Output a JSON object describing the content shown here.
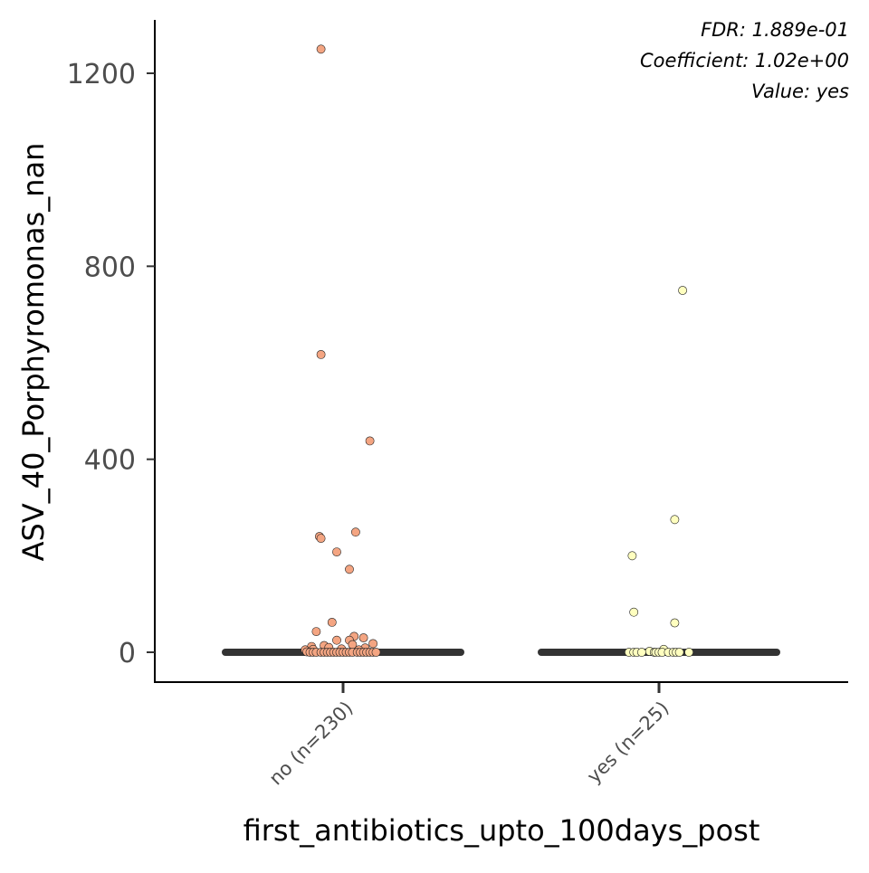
{
  "chart_data": {
    "type": "scatter",
    "title": "",
    "xlabel": "first_antibiotics_upto_100days_post",
    "ylabel": "ASV_40_Porphyromonas_nan",
    "categories": [
      "no (n=230)",
      "yes (n=25)"
    ],
    "yticks": [
      0,
      400,
      800,
      1200
    ],
    "ylim": [
      -60,
      1310
    ],
    "grid": false,
    "legend": "none",
    "annotations": [
      "FDR: 1.889e-01",
      "Coefficient: 1.02e+00",
      "Value: yes"
    ],
    "median_lines": [
      {
        "category": "no (n=230)",
        "value": 0
      },
      {
        "category": "yes (n=25)",
        "value": 0
      }
    ],
    "series": [
      {
        "category": "no (n=230)",
        "color": "#f4a582",
        "points": [
          {
            "x": -0.14,
            "y": 1250
          },
          {
            "x": -0.14,
            "y": 617
          },
          {
            "x": 0.17,
            "y": 438
          },
          {
            "x": 0.08,
            "y": 249
          },
          {
            "x": -0.15,
            "y": 240
          },
          {
            "x": -0.14,
            "y": 236
          },
          {
            "x": -0.04,
            "y": 208
          },
          {
            "x": 0.04,
            "y": 172
          },
          {
            "x": -0.07,
            "y": 62
          },
          {
            "x": -0.17,
            "y": 43
          },
          {
            "x": 0.07,
            "y": 33
          },
          {
            "x": 0.13,
            "y": 30
          },
          {
            "x": -0.04,
            "y": 25
          },
          {
            "x": 0.04,
            "y": 25
          },
          {
            "x": 0.19,
            "y": 18
          },
          {
            "x": 0.06,
            "y": 16
          },
          {
            "x": -0.12,
            "y": 14
          },
          {
            "x": -0.2,
            "y": 12
          },
          {
            "x": -0.09,
            "y": 10
          },
          {
            "x": 0.14,
            "y": 9
          },
          {
            "x": -0.01,
            "y": 7
          },
          {
            "x": -0.19,
            "y": 6
          },
          {
            "x": 0.1,
            "y": 5
          },
          {
            "x": -0.24,
            "y": 5
          },
          {
            "x": -0.23,
            "y": 1
          },
          {
            "x": -0.21,
            "y": 0
          },
          {
            "x": -0.19,
            "y": 0
          },
          {
            "x": -0.17,
            "y": 0
          },
          {
            "x": -0.14,
            "y": 0
          },
          {
            "x": -0.12,
            "y": 0
          },
          {
            "x": -0.1,
            "y": 0
          },
          {
            "x": -0.08,
            "y": 0
          },
          {
            "x": -0.06,
            "y": 0
          },
          {
            "x": -0.04,
            "y": 0
          },
          {
            "x": -0.02,
            "y": 0
          },
          {
            "x": 0.0,
            "y": 0
          },
          {
            "x": 0.02,
            "y": 0
          },
          {
            "x": 0.04,
            "y": 0
          },
          {
            "x": 0.06,
            "y": 0
          },
          {
            "x": 0.09,
            "y": 0
          },
          {
            "x": 0.11,
            "y": 0
          },
          {
            "x": 0.13,
            "y": 0
          },
          {
            "x": 0.15,
            "y": 0
          },
          {
            "x": 0.17,
            "y": 0
          },
          {
            "x": 0.19,
            "y": 0
          },
          {
            "x": 0.21,
            "y": 0
          }
        ]
      },
      {
        "category": "yes (n=25)",
        "color": "#ffffbf",
        "points": [
          {
            "x": 0.15,
            "y": 750
          },
          {
            "x": 0.1,
            "y": 275
          },
          {
            "x": -0.17,
            "y": 200
          },
          {
            "x": -0.16,
            "y": 83
          },
          {
            "x": 0.1,
            "y": 61
          },
          {
            "x": 0.03,
            "y": 6
          },
          {
            "x": -0.06,
            "y": 2
          },
          {
            "x": -0.19,
            "y": 0
          },
          {
            "x": -0.16,
            "y": 0
          },
          {
            "x": -0.14,
            "y": 0
          },
          {
            "x": -0.11,
            "y": 0
          },
          {
            "x": -0.03,
            "y": 0
          },
          {
            "x": -0.02,
            "y": 0
          },
          {
            "x": 0.0,
            "y": 0
          },
          {
            "x": 0.02,
            "y": 0
          },
          {
            "x": 0.06,
            "y": 0
          },
          {
            "x": 0.09,
            "y": 0
          },
          {
            "x": 0.11,
            "y": 0
          },
          {
            "x": 0.13,
            "y": 0
          },
          {
            "x": 0.19,
            "y": 0
          }
        ]
      }
    ]
  }
}
